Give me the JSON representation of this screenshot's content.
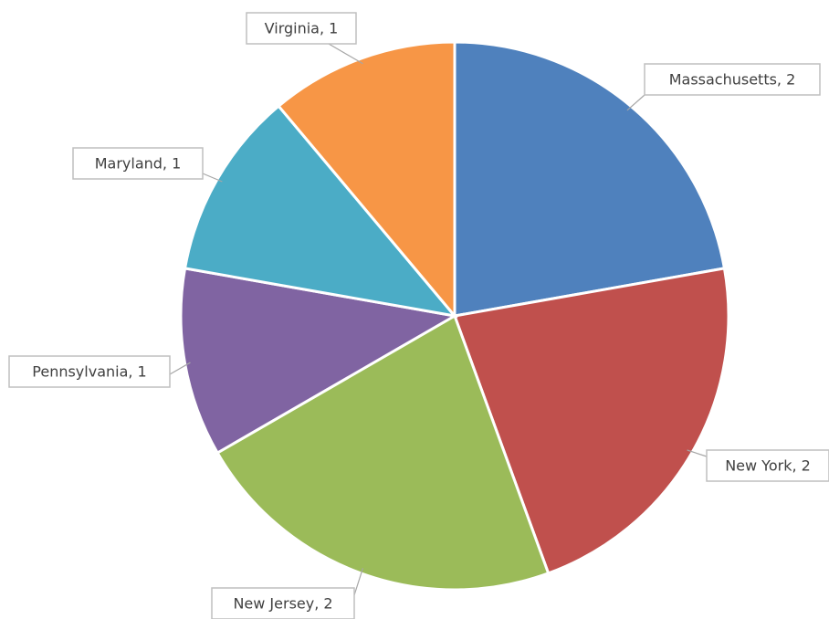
{
  "chart_data": {
    "type": "pie",
    "categories": [
      "Massachusetts",
      "New York",
      "New Jersey",
      "Pennsylvania",
      "Maryland",
      "Virginia"
    ],
    "values": [
      2,
      2,
      2,
      1,
      1,
      1
    ],
    "value_labels": [
      "Massachusetts, 2",
      "New York, 2",
      "New Jersey, 2",
      "Pennsylvania, 1",
      "Maryland, 1",
      "Virginia, 1"
    ],
    "colors": [
      "#4f81bd",
      "#c0504d",
      "#9bbb59",
      "#8064a2",
      "#4bacc6",
      "#f79646"
    ]
  }
}
